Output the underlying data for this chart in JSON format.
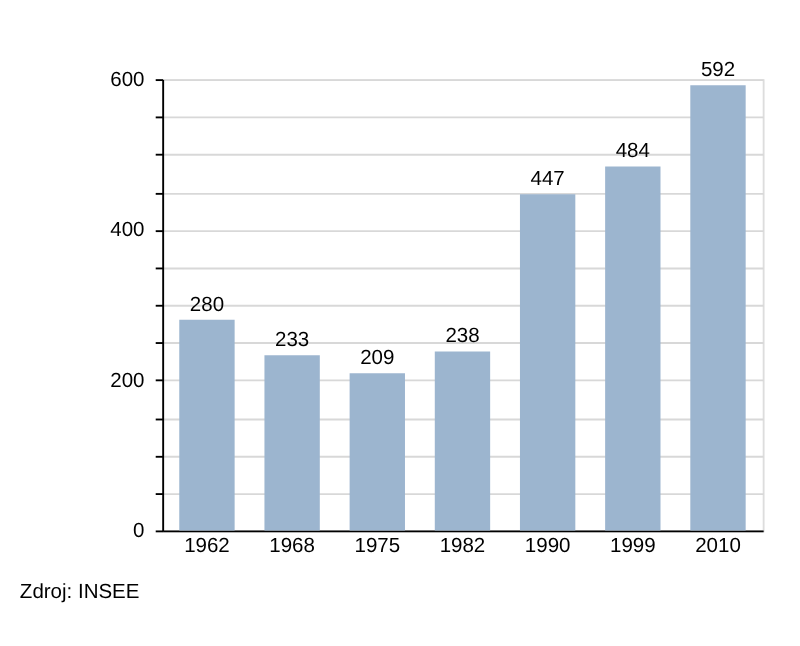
{
  "chart_data": {
    "type": "bar",
    "categories": [
      "1962",
      "1968",
      "1975",
      "1982",
      "1990",
      "1999",
      "2010"
    ],
    "values": [
      280,
      233,
      209,
      238,
      447,
      484,
      592
    ],
    "color": "#9cb5cf",
    "ylim": [
      0,
      600
    ],
    "yticks": [
      0,
      {
        "value": 50,
        "label": null
      },
      {
        "value": 100,
        "label": null
      },
      {
        "value": 150,
        "label": null
      },
      200,
      {
        "value": 250,
        "label": null
      },
      {
        "value": 300,
        "label": null
      },
      {
        "value": 350,
        "label": null
      },
      400,
      {
        "value": 450,
        "label": null
      },
      {
        "value": 500,
        "label": null
      },
      {
        "value": 550,
        "label": null
      },
      600
    ],
    "grid": "y",
    "data_labels": true,
    "annotations": [
      "Zdroj: INSEE"
    ]
  }
}
